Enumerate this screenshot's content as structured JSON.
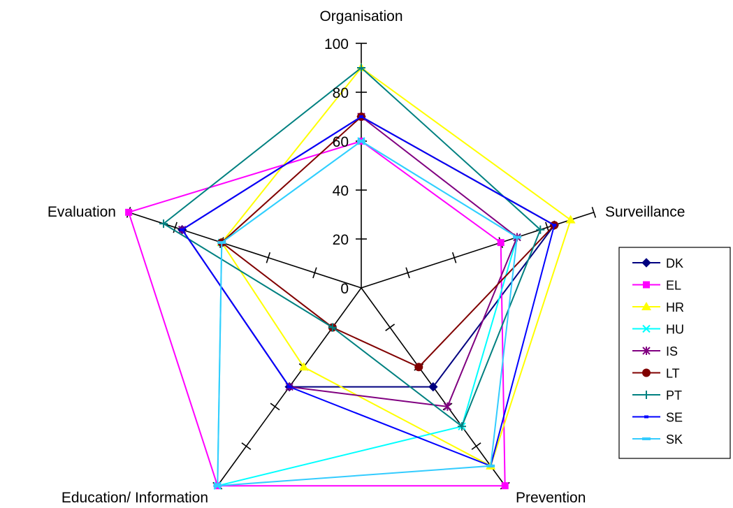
{
  "chart_data": {
    "type": "radar",
    "title": "",
    "axes": [
      "Organisation",
      "Surveillance",
      "Prevention",
      "Education/ Information",
      "Evaluation"
    ],
    "r_range": [
      0,
      100
    ],
    "r_ticks": [
      0,
      20,
      40,
      60,
      80,
      100
    ],
    "tick_label_axis": "Organisation",
    "legend_position": "right",
    "series": [
      {
        "name": "DK",
        "color": "#000080",
        "marker": "diamond",
        "values": [
          70,
          83,
          50,
          50,
          77
        ]
      },
      {
        "name": "EL",
        "color": "#FF00FF",
        "marker": "square",
        "values": [
          60,
          60,
          100,
          100,
          100
        ]
      },
      {
        "name": "HR",
        "color": "#FFFF00",
        "marker": "triangle",
        "values": [
          90,
          90,
          90,
          40,
          60
        ]
      },
      {
        "name": "HU",
        "color": "#00FFFF",
        "marker": "x",
        "values": [
          60,
          67,
          70,
          100,
          60
        ]
      },
      {
        "name": "IS",
        "color": "#800080",
        "marker": "star",
        "values": [
          70,
          67,
          60,
          50,
          77
        ]
      },
      {
        "name": "LT",
        "color": "#800000",
        "marker": "circle",
        "values": [
          70,
          83,
          40,
          20,
          60
        ]
      },
      {
        "name": "PT",
        "color": "#008080",
        "marker": "plus",
        "values": [
          90,
          77,
          70,
          20,
          85
        ]
      },
      {
        "name": "SE",
        "color": "#0000FF",
        "marker": "dash",
        "values": [
          70,
          83,
          90,
          50,
          77
        ]
      },
      {
        "name": "SK",
        "color": "#33CCFF",
        "marker": "bar",
        "values": [
          60,
          67,
          90,
          100,
          60
        ]
      }
    ]
  }
}
